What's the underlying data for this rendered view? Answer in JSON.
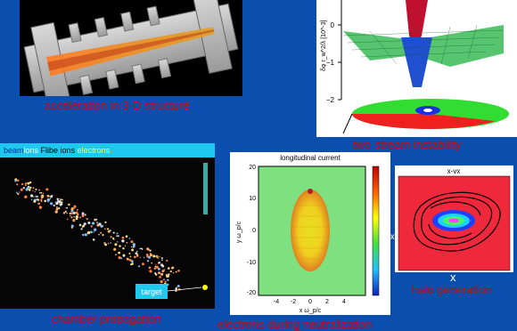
{
  "colors": {
    "background": "#0b4fae",
    "caption": "#d90000",
    "legend_bar": "#1ec8ee",
    "legend_beam": "#0a2a9a",
    "legend_ions": "#ffffff",
    "legend_flibe": "#000000",
    "legend_electrons": "#ffff40",
    "target": "#ffff00"
  },
  "panels": {
    "acceleration": {
      "caption": "acceleration in 3-D structure"
    },
    "two_stream": {
      "caption": "two-stream instability",
      "axis_label": "δφ r_w^2/λ [10^-3]",
      "ticks": [
        "0",
        "−1",
        "−2"
      ]
    },
    "chamber": {
      "caption": "chamber propagation",
      "legend": {
        "beam": "beam",
        "ions": "ions",
        "flibe": "Flibe ions",
        "electrons": "electrons"
      },
      "target_label": "target"
    },
    "neutralization": {
      "caption": "electrons during neutralization",
      "title": "longitudinal current",
      "ylabel": "y ω_p/c",
      "xlabel": "x ω_p/c",
      "yticks": [
        "20",
        "10",
        "0",
        "-10",
        "-20"
      ],
      "xticks": [
        "-4",
        "-2",
        "0",
        "2",
        "4"
      ],
      "px_label": "p",
      "px_sub": "x"
    },
    "halo": {
      "caption": "halo generation",
      "title": "x-vx",
      "xlabel": "x"
    }
  }
}
